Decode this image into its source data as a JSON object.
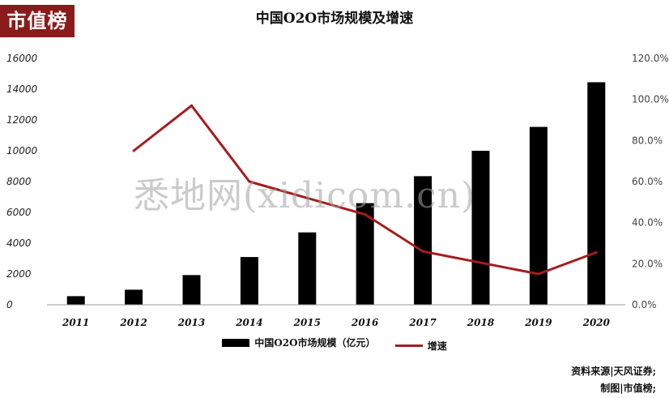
{
  "logo": {
    "text": "市值榜"
  },
  "watermark": {
    "text": "悉地网(xidicom.cn)"
  },
  "footer": {
    "source": "资料来源|天风证券;",
    "maker": "制图|市值榜;"
  },
  "chart_data": {
    "type": "bar",
    "title": "中国O2O市场规模及增速",
    "categories": [
      "2011",
      "2012",
      "2013",
      "2014",
      "2015",
      "2016",
      "2017",
      "2018",
      "2019",
      "2020"
    ],
    "series": [
      {
        "name": "中国O2O市场规模（亿元）",
        "type": "bar",
        "axis": "left",
        "values": [
          560,
          980,
          1930,
          3100,
          4700,
          6600,
          8350,
          10000,
          11550,
          14450
        ]
      },
      {
        "name": "增速",
        "type": "line",
        "axis": "right",
        "values": [
          null,
          75.0,
          97.0,
          60.0,
          52.0,
          44.0,
          26.0,
          20.5,
          15.0,
          25.5
        ]
      }
    ],
    "left_axis": {
      "ylim": [
        0,
        16000
      ],
      "ticks": [
        "0",
        "2000",
        "4000",
        "6000",
        "8000",
        "10000",
        "12000",
        "14000",
        "16000"
      ]
    },
    "right_axis": {
      "ylim": [
        0,
        120
      ],
      "ticks": [
        "0.0%",
        "20.0%",
        "40.0%",
        "60.0%",
        "80.0%",
        "100.0%",
        "120.0%"
      ]
    },
    "grid": false,
    "legend_position": "bottom",
    "colors": {
      "bar": "#000000",
      "line": "#a51d1d"
    }
  }
}
